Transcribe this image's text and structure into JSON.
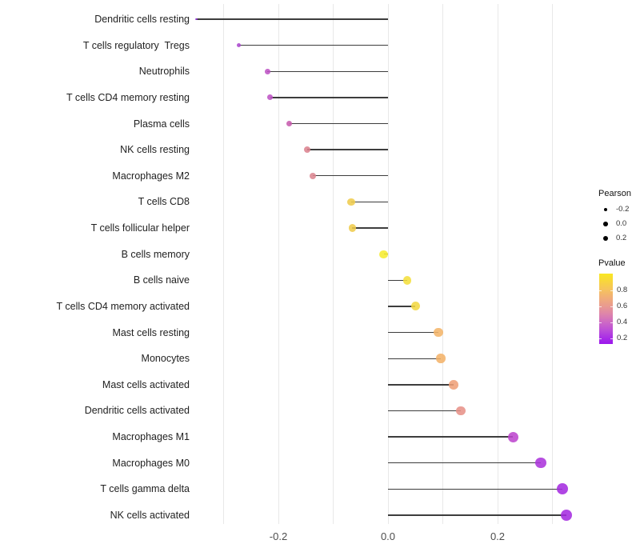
{
  "chart_data": {
    "type": "scatter",
    "variant": "lollipop",
    "title": "",
    "xlabel": "",
    "ylabel": "",
    "xlim": [
      -0.355,
      0.37
    ],
    "grid": true,
    "x_gridlines": [
      -0.3,
      -0.2,
      -0.1,
      0.0,
      0.1,
      0.2,
      0.3
    ],
    "x_ticks": [
      {
        "value": -0.2,
        "label": "-0.2"
      },
      {
        "value": 0.0,
        "label": "0.0"
      },
      {
        "value": 0.2,
        "label": "0.2"
      }
    ],
    "categories": [
      "Dendritic cells resting",
      "T cells regulatory  Tregs",
      "Neutrophils",
      "T cells CD4 memory resting",
      "Plasma cells",
      "NK cells resting",
      "Macrophages M2",
      "T cells CD8",
      "T cells follicular helper",
      "B cells memory",
      "B cells naive",
      "T cells CD4 memory activated",
      "Mast cells resting",
      "Monocytes",
      "Mast cells activated",
      "Dendritic cells activated",
      "Macrophages M1",
      "Macrophages M0",
      "T cells gamma delta",
      "NK cells activated"
    ],
    "points": [
      {
        "label": "Dendritic cells resting",
        "pearson": -0.35,
        "pvalue": 0.14,
        "color": "#9232d8"
      },
      {
        "label": "T cells regulatory  Tregs",
        "pearson": -0.272,
        "pvalue": 0.26,
        "color": "#aa46ce"
      },
      {
        "label": "Neutrophils",
        "pearson": -0.22,
        "pvalue": 0.33,
        "color": "#bd53c4"
      },
      {
        "label": "T cells CD4 memory resting",
        "pearson": -0.215,
        "pvalue": 0.33,
        "color": "#bd53c4"
      },
      {
        "label": "Plasma cells",
        "pearson": -0.18,
        "pvalue": 0.4,
        "color": "#c75bad"
      },
      {
        "label": "NK cells resting",
        "pearson": -0.147,
        "pvalue": 0.55,
        "color": "#db828f"
      },
      {
        "label": "Macrophages M2",
        "pearson": -0.137,
        "pvalue": 0.56,
        "color": "#db8590"
      },
      {
        "label": "T cells CD8",
        "pearson": -0.067,
        "pvalue": 0.82,
        "color": "#efcb4c"
      },
      {
        "label": "T cells follicular helper",
        "pearson": -0.065,
        "pvalue": 0.82,
        "color": "#efcb4c"
      },
      {
        "label": "B cells memory",
        "pearson": -0.008,
        "pvalue": 0.97,
        "color": "#f6ec2e"
      },
      {
        "label": "B cells naive",
        "pearson": 0.035,
        "pvalue": 0.92,
        "color": "#f4df3c"
      },
      {
        "label": "T cells CD4 memory activated",
        "pearson": 0.05,
        "pvalue": 0.9,
        "color": "#f2d843"
      },
      {
        "label": "Mast cells resting",
        "pearson": 0.092,
        "pvalue": 0.72,
        "color": "#f4b469"
      },
      {
        "label": "Monocytes",
        "pearson": 0.096,
        "pvalue": 0.71,
        "color": "#f4b269"
      },
      {
        "label": "Mast cells activated",
        "pearson": 0.12,
        "pvalue": 0.64,
        "color": "#efa077"
      },
      {
        "label": "Dendritic cells activated",
        "pearson": 0.133,
        "pvalue": 0.58,
        "color": "#e79187"
      },
      {
        "label": "Macrophages M1",
        "pearson": 0.228,
        "pvalue": 0.32,
        "color": "#bc45ce"
      },
      {
        "label": "Macrophages M0",
        "pearson": 0.279,
        "pvalue": 0.24,
        "color": "#ab34db"
      },
      {
        "label": "T cells gamma delta",
        "pearson": 0.318,
        "pvalue": 0.19,
        "color": "#a42be0"
      },
      {
        "label": "NK cells activated",
        "pearson": 0.326,
        "pvalue": 0.18,
        "color": "#a42be0"
      }
    ],
    "legend": {
      "position": "right",
      "size": {
        "title": "Pearson",
        "entries": [
          {
            "label": "-0.2"
          },
          {
            "label": "0.0"
          },
          {
            "label": "0.2"
          }
        ]
      },
      "color": {
        "title": "Pvalue",
        "tick_labels": [
          "0.8",
          "0.6",
          "0.4",
          "0.2"
        ],
        "gradient_top_color": "#f9e822",
        "gradient_bottom_color": "#9b16ec"
      }
    }
  }
}
